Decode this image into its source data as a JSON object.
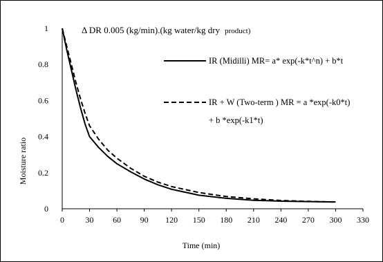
{
  "chart_data": {
    "type": "line",
    "annotation": {
      "main": "Δ DR 0.005 (kg/min).(kg water/kg dry",
      "tail": "product)"
    },
    "xlabel": "Time (min)",
    "ylabel": "Moisture ratio",
    "xlim": [
      0,
      330
    ],
    "ylim": [
      0,
      1
    ],
    "xticks": [
      0,
      30,
      60,
      90,
      120,
      150,
      180,
      210,
      240,
      270,
      300,
      330
    ],
    "yticks": [
      0,
      0.2,
      0.4,
      0.6,
      0.8,
      1
    ],
    "grid": false,
    "legend_position": "right",
    "series": [
      {
        "name": "IR (Midilli)  MR= a* exp(-k*t^n) + b*t",
        "name_line2": "",
        "style": "solid",
        "color": "#000000",
        "x": [
          0,
          5,
          10,
          15,
          20,
          25,
          30,
          40,
          50,
          60,
          75,
          90,
          105,
          120,
          150,
          180,
          210,
          240,
          270,
          300
        ],
        "y": [
          1.0,
          0.88,
          0.77,
          0.66,
          0.56,
          0.47,
          0.4,
          0.34,
          0.29,
          0.25,
          0.205,
          0.165,
          0.133,
          0.108,
          0.075,
          0.058,
          0.047,
          0.042,
          0.04,
          0.038
        ]
      },
      {
        "name": "IR + W (Two-term ) MR = a *exp(-k0*t)",
        "name_line2": "+ b *exp(-k1*t)",
        "style": "dashed",
        "color": "#000000",
        "x": [
          0,
          5,
          10,
          15,
          20,
          25,
          30,
          40,
          50,
          60,
          75,
          90,
          105,
          120,
          150,
          180,
          210,
          240,
          270,
          300
        ],
        "y": [
          1.0,
          0.9,
          0.8,
          0.7,
          0.61,
          0.53,
          0.46,
          0.385,
          0.325,
          0.28,
          0.225,
          0.18,
          0.148,
          0.123,
          0.09,
          0.068,
          0.055,
          0.046,
          0.041,
          0.037
        ]
      }
    ]
  }
}
